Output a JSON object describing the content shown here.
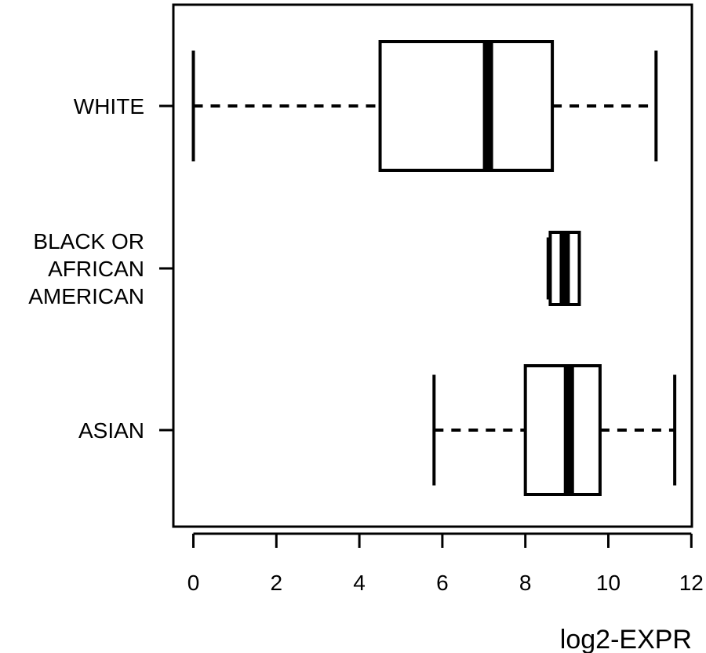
{
  "chart_data": {
    "type": "boxplot",
    "orientation": "horizontal",
    "title": "",
    "xlabel": "log2-EXPR",
    "ylabel": "",
    "xlim": [
      -0.5,
      12
    ],
    "x_ticks": [
      0,
      2,
      4,
      6,
      8,
      10,
      12
    ],
    "x_tick_labels": [
      "0",
      "2",
      "4",
      "6",
      "8",
      "10",
      "12"
    ],
    "grid": false,
    "legend": "none",
    "categories": [
      {
        "label_lines": [
          "WHITE"
        ],
        "min": 0.0,
        "q1": 4.5,
        "median": 7.1,
        "q3": 8.65,
        "max": 11.15
      },
      {
        "label_lines": [
          "BLACK OR",
          "AFRICAN",
          "AMERICAN"
        ],
        "min": 8.55,
        "q1": 8.6,
        "median": 8.95,
        "q3": 9.3,
        "max": 9.3
      },
      {
        "label_lines": [
          "ASIAN"
        ],
        "min": 5.8,
        "q1": 8.0,
        "median": 9.05,
        "q3": 9.8,
        "max": 11.6
      }
    ],
    "colors": {
      "stroke": "#000000",
      "fill": "#ffffff"
    }
  }
}
